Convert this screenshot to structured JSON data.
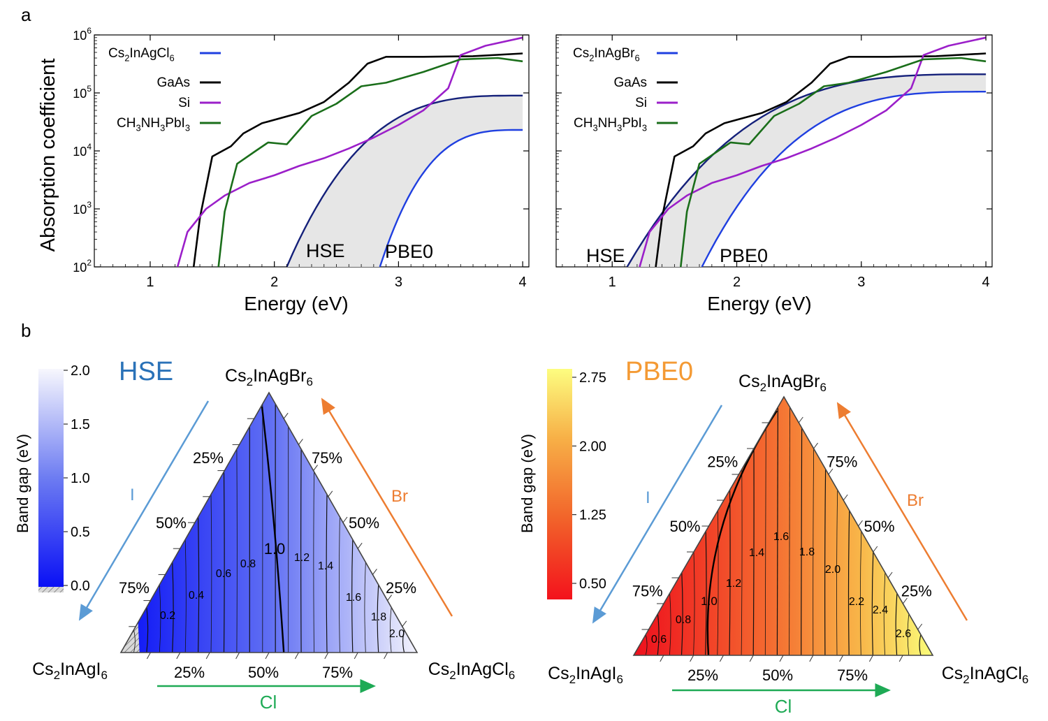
{
  "panels": {
    "a": "a",
    "b": "b"
  },
  "absorption": {
    "xlabel": "Energy (eV)",
    "ylabel": "Absorption coefficient",
    "xticks": [
      "1",
      "2",
      "3",
      "4"
    ],
    "yticks": [
      {
        "base": "10",
        "exp": "2"
      },
      {
        "base": "10",
        "exp": "3"
      },
      {
        "base": "10",
        "exp": "4"
      },
      {
        "base": "10",
        "exp": "5"
      },
      {
        "base": "10",
        "exp": "6"
      }
    ],
    "band_labels": {
      "hse": "HSE",
      "pbe0": "PBE0"
    }
  },
  "ternary": {
    "hse": {
      "title": "HSE",
      "colorbar_label": "Band gap (eV)",
      "colorbar_ticks": [
        "0.0",
        "0.5",
        "1.0",
        "1.5",
        "2.0"
      ],
      "contour_labels": [
        "0.2",
        "0.4",
        "0.6",
        "0.8",
        "1.0",
        "1.2",
        "1.4",
        "1.6",
        "1.8",
        "2.0"
      ]
    },
    "pbe0": {
      "title": "PBE0",
      "colorbar_label": "Band gap (eV)",
      "colorbar_ticks": [
        "0.50",
        "1.25",
        "2.00",
        "2.75"
      ],
      "contour_labels": [
        "0.6",
        "0.8",
        "1.0",
        "1.2",
        "1.4",
        "1.6",
        "1.8",
        "2.0",
        "2.2",
        "2.4",
        "2.6"
      ]
    },
    "percent_ticks": [
      "25%",
      "50%",
      "75%"
    ],
    "arrows": {
      "i": "I",
      "br": "Br",
      "cl": "Cl"
    },
    "vertices": {
      "top": {
        "pre": "Cs",
        "sub": "2",
        "post": "InAgBr",
        "sub2": "6"
      },
      "left": {
        "pre": "Cs",
        "sub": "2",
        "post": "InAgI",
        "sub2": "6"
      },
      "right": {
        "pre": "Cs",
        "sub": "2",
        "post": "InAgCl",
        "sub2": "6"
      }
    }
  },
  "chart_data": [
    {
      "type": "line",
      "title": "",
      "xlabel": "Energy (eV)",
      "ylabel": "Absorption coefficient",
      "xlim": [
        0.55,
        4.05
      ],
      "ylim": [
        100,
        1000000
      ],
      "yscale": "log",
      "legend_placement": "top-left",
      "series": [
        {
          "name": "GaAs",
          "color": "#000000",
          "x": [
            1.35,
            1.4,
            1.5,
            1.65,
            1.75,
            1.9,
            2.2,
            2.4,
            2.6,
            2.75,
            2.9,
            3.2,
            3.6,
            4.0
          ],
          "y": [
            100,
            700,
            8000,
            12000,
            20000,
            30000,
            45000,
            70000,
            150000,
            320000,
            420000,
            420000,
            430000,
            480000
          ]
        },
        {
          "name": "Si",
          "color": "#9b1fc9",
          "x": [
            1.22,
            1.3,
            1.45,
            1.6,
            1.8,
            2.0,
            2.2,
            2.4,
            2.6,
            2.8,
            3.0,
            3.2,
            3.4,
            3.5,
            3.7,
            4.0
          ],
          "y": [
            100,
            400,
            1000,
            1700,
            2800,
            3800,
            5500,
            7500,
            11000,
            17000,
            28000,
            50000,
            120000,
            450000,
            650000,
            900000
          ]
        },
        {
          "name": "CH3NH3PbI3",
          "color": "#1a6e1a",
          "x": [
            1.55,
            1.6,
            1.7,
            1.85,
            1.95,
            2.1,
            2.3,
            2.5,
            2.7,
            2.9,
            3.2,
            3.5,
            3.8,
            4.0
          ],
          "y": [
            100,
            900,
            6000,
            10000,
            14000,
            13000,
            40000,
            65000,
            130000,
            150000,
            230000,
            380000,
            400000,
            350000
          ]
        }
      ],
      "bands": {
        "legend": "Cs2InAgCl6",
        "color": "#1f3fe0",
        "hse_onset": 2.1,
        "pbe0_onset": 2.85,
        "y_at_4eV_hse": 90000,
        "y_at_4eV_pbe0": 23000
      }
    },
    {
      "type": "line",
      "title": "",
      "xlabel": "Energy (eV)",
      "ylabel": "",
      "xlim": [
        0.55,
        4.05
      ],
      "ylim": [
        100,
        1000000
      ],
      "yscale": "log",
      "legend_placement": "top-left",
      "series": [
        {
          "name": "GaAs",
          "color": "#000000",
          "x": [
            1.35,
            1.4,
            1.5,
            1.65,
            1.75,
            1.9,
            2.2,
            2.4,
            2.6,
            2.75,
            2.9,
            3.2,
            3.6,
            4.0
          ],
          "y": [
            100,
            700,
            8000,
            12000,
            20000,
            30000,
            45000,
            70000,
            150000,
            320000,
            420000,
            420000,
            430000,
            480000
          ]
        },
        {
          "name": "Si",
          "color": "#9b1fc9",
          "x": [
            1.22,
            1.3,
            1.45,
            1.6,
            1.8,
            2.0,
            2.2,
            2.4,
            2.6,
            2.8,
            3.0,
            3.2,
            3.4,
            3.5,
            3.7,
            4.0
          ],
          "y": [
            100,
            400,
            1000,
            1700,
            2800,
            3800,
            5500,
            7500,
            11000,
            17000,
            28000,
            50000,
            120000,
            450000,
            650000,
            900000
          ]
        },
        {
          "name": "CH3NH3PbI3",
          "color": "#1a6e1a",
          "x": [
            1.55,
            1.6,
            1.7,
            1.85,
            1.95,
            2.1,
            2.3,
            2.5,
            2.7,
            2.9,
            3.2,
            3.5,
            3.8,
            4.0
          ],
          "y": [
            100,
            900,
            6000,
            10000,
            14000,
            13000,
            40000,
            65000,
            130000,
            150000,
            230000,
            380000,
            400000,
            350000
          ]
        }
      ],
      "bands": {
        "legend": "Cs2InAgBr6",
        "color": "#1f3fe0",
        "hse_onset": 1.12,
        "pbe0_onset": 1.72,
        "y_at_4eV_hse": 210000,
        "y_at_4eV_pbe0": 105000
      }
    },
    {
      "type": "heatmap",
      "title": "HSE",
      "colorbar_label": "Band gap (eV)",
      "colorbar_range": [
        0.0,
        2.0
      ],
      "contour_values": [
        0.2,
        0.4,
        0.6,
        0.8,
        1.0,
        1.2,
        1.4,
        1.6,
        1.8,
        2.0
      ],
      "corners_eV": {
        "Cs2InAgI6": 0.0,
        "Cs2InAgBr6": 1.0,
        "Cs2InAgCl6": 2.1
      }
    },
    {
      "type": "heatmap",
      "title": "PBE0",
      "colorbar_label": "Band gap (eV)",
      "colorbar_range": [
        0.4,
        2.85
      ],
      "contour_values": [
        0.6,
        0.8,
        1.0,
        1.2,
        1.4,
        1.6,
        1.8,
        2.0,
        2.2,
        2.4,
        2.6
      ],
      "corners_eV": {
        "Cs2InAgI6": 0.5,
        "Cs2InAgBr6": 1.7,
        "Cs2InAgCl6": 2.75
      }
    }
  ]
}
